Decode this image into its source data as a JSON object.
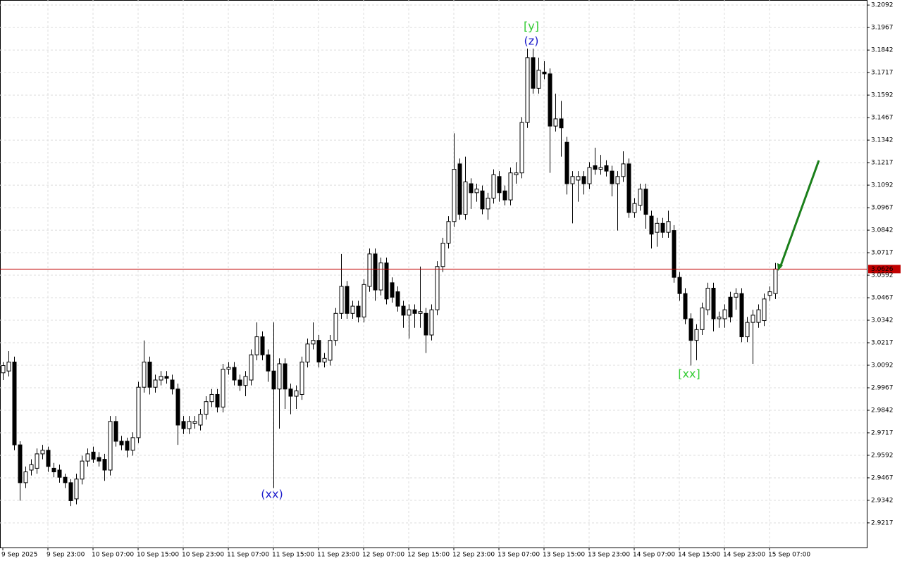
{
  "chart_data": {
    "type": "candlestick",
    "open": [
      3.005,
      3.006,
      3.011,
      2.965,
      2.944,
      2.951,
      2.952,
      2.96,
      2.962,
      2.952,
      2.951,
      2.947,
      2.944,
      2.935,
      2.946,
      2.956,
      2.961,
      2.958,
      2.957,
      2.951,
      2.978,
      2.967,
      2.967,
      2.962,
      2.969,
      2.997,
      3.011,
      2.997,
      3.001,
      3.003,
      3.001,
      2.996,
      2.978,
      2.974,
      2.977,
      2.976,
      2.982,
      2.989,
      2.993,
      2.986,
      3.007,
      3.008,
      3.001,
      2.998,
      3.001,
      3.015,
      3.025,
      3.015,
      3.006,
      2.996,
      3.01,
      2.996,
      2.992,
      2.993,
      3.011,
      3.021,
      3.023,
      3.011,
      3.012,
      3.023,
      3.038,
      3.053,
      3.038,
      3.042,
      3.036,
      3.053,
      3.071,
      3.051,
      3.066,
      3.055,
      3.05,
      3.042,
      3.037,
      3.04,
      3.038,
      3.038,
      3.026,
      3.04,
      3.064,
      3.077,
      3.089,
      3.121,
      3.093,
      3.11,
      3.105,
      3.106,
      3.096,
      3.102,
      3.114,
      3.106,
      3.101,
      3.115,
      3.116,
      3.144,
      3.18,
      3.163,
      3.172,
      3.171,
      3.142,
      3.146,
      3.133,
      3.11,
      3.112,
      3.114,
      3.11,
      3.12,
      3.118,
      3.12,
      3.117,
      3.11,
      3.114,
      3.121,
      3.094,
      3.098,
      3.107,
      3.092,
      3.083,
      3.088,
      3.083,
      3.084,
      3.058,
      3.049,
      3.035,
      3.023,
      3.029,
      3.04,
      3.052,
      3.035,
      3.035,
      3.047,
      3.047,
      3.049,
      3.025,
      3.033,
      3.033,
      3.034,
      3.048,
      3.049
    ],
    "high": [
      3.011,
      3.017,
      3.014,
      2.967,
      2.953,
      2.957,
      2.963,
      2.965,
      2.964,
      2.955,
      2.954,
      2.949,
      2.946,
      2.949,
      2.959,
      2.963,
      2.964,
      2.961,
      2.96,
      2.981,
      2.981,
      2.97,
      2.969,
      2.972,
      3.0,
      3.023,
      3.014,
      3.004,
      3.006,
      3.006,
      3.004,
      2.999,
      2.981,
      2.981,
      2.981,
      2.985,
      2.992,
      2.996,
      2.996,
      3.01,
      3.011,
      3.011,
      3.004,
      3.006,
      3.018,
      3.033,
      3.028,
      3.018,
      3.033,
      3.013,
      3.013,
      2.999,
      2.998,
      3.014,
      3.024,
      3.033,
      3.026,
      3.016,
      3.026,
      3.041,
      3.071,
      3.056,
      3.045,
      3.045,
      3.057,
      3.074,
      3.074,
      3.069,
      3.069,
      3.058,
      3.053,
      3.045,
      3.043,
      3.043,
      3.064,
      3.041,
      3.043,
      3.067,
      3.08,
      3.092,
      3.138,
      3.124,
      3.125,
      3.113,
      3.11,
      3.109,
      3.105,
      3.118,
      3.117,
      3.109,
      3.119,
      3.122,
      3.147,
      3.185,
      3.185,
      3.18,
      3.178,
      3.174,
      3.16,
      3.156,
      3.136,
      3.117,
      3.117,
      3.117,
      3.122,
      3.13,
      3.126,
      3.123,
      3.12,
      3.117,
      3.128,
      3.124,
      3.102,
      3.11,
      3.11,
      3.095,
      3.091,
      3.091,
      3.095,
      3.087,
      3.061,
      3.052,
      3.038,
      3.032,
      3.044,
      3.055,
      3.055,
      3.039,
      3.043,
      3.05,
      3.052,
      3.052,
      3.036,
      3.04,
      3.043,
      3.049,
      3.053,
      3.066
    ],
    "low": [
      3.001,
      3.003,
      2.962,
      2.934,
      2.941,
      2.948,
      2.949,
      2.957,
      2.95,
      2.947,
      2.944,
      2.941,
      2.931,
      2.932,
      2.943,
      2.953,
      2.955,
      2.953,
      2.945,
      2.948,
      2.964,
      2.962,
      2.958,
      2.959,
      2.966,
      2.994,
      2.993,
      2.994,
      2.998,
      2.999,
      2.993,
      2.965,
      2.971,
      2.971,
      2.974,
      2.973,
      2.979,
      2.986,
      2.983,
      2.983,
      3.004,
      2.998,
      2.995,
      2.992,
      2.998,
      3.012,
      3.012,
      3.0,
      2.941,
      2.974,
      2.985,
      2.982,
      2.985,
      2.99,
      3.008,
      3.018,
      3.008,
      3.008,
      3.009,
      3.02,
      3.035,
      3.035,
      3.035,
      3.033,
      3.033,
      3.05,
      3.045,
      3.048,
      3.043,
      3.044,
      3.039,
      3.03,
      3.024,
      3.03,
      3.03,
      3.016,
      3.023,
      3.037,
      3.061,
      3.074,
      3.086,
      3.09,
      3.09,
      3.096,
      3.1,
      3.093,
      3.09,
      3.099,
      3.1,
      3.098,
      3.098,
      3.11,
      3.113,
      3.141,
      3.16,
      3.16,
      3.168,
      3.116,
      3.139,
      3.125,
      3.104,
      3.088,
      3.1,
      3.104,
      3.107,
      3.115,
      3.115,
      3.114,
      3.103,
      3.084,
      3.111,
      3.091,
      3.091,
      3.095,
      3.085,
      3.074,
      3.075,
      3.08,
      3.08,
      3.055,
      3.045,
      3.032,
      3.009,
      3.012,
      3.026,
      3.037,
      3.028,
      3.03,
      3.03,
      3.033,
      3.04,
      3.022,
      3.022,
      3.01,
      3.03,
      3.031,
      3.045,
      3.046
    ],
    "close": [
      3.009,
      3.011,
      2.965,
      2.944,
      2.95,
      2.954,
      2.96,
      2.962,
      2.953,
      2.95,
      2.947,
      2.944,
      2.934,
      2.946,
      2.956,
      2.96,
      2.957,
      2.956,
      2.951,
      2.978,
      2.967,
      2.965,
      2.962,
      2.969,
      2.997,
      3.011,
      2.997,
      3.001,
      3.003,
      3.002,
      2.996,
      2.976,
      2.974,
      2.978,
      2.978,
      2.982,
      2.989,
      2.993,
      2.986,
      3.007,
      3.008,
      3.001,
      2.998,
      3.003,
      3.015,
      3.025,
      3.015,
      3.006,
      2.996,
      3.01,
      2.996,
      2.992,
      2.995,
      3.011,
      3.021,
      3.023,
      3.011,
      3.013,
      3.023,
      3.038,
      3.053,
      3.038,
      3.042,
      3.036,
      3.054,
      3.071,
      3.051,
      3.066,
      3.046,
      3.047,
      3.042,
      3.037,
      3.04,
      3.038,
      3.039,
      3.026,
      3.04,
      3.064,
      3.077,
      3.089,
      3.118,
      3.093,
      3.111,
      3.105,
      3.107,
      3.096,
      3.102,
      3.115,
      3.105,
      3.101,
      3.116,
      3.116,
      3.144,
      3.18,
      3.163,
      3.173,
      3.171,
      3.142,
      3.146,
      3.141,
      3.11,
      3.114,
      3.114,
      3.11,
      3.119,
      3.118,
      3.119,
      3.117,
      3.11,
      3.114,
      3.121,
      3.094,
      3.099,
      3.107,
      3.093,
      3.082,
      3.088,
      3.083,
      3.089,
      3.058,
      3.049,
      3.035,
      3.023,
      3.029,
      3.041,
      3.052,
      3.035,
      3.036,
      3.04,
      3.036,
      3.049,
      3.025,
      3.033,
      3.037,
      3.04,
      3.046,
      3.05,
      3.0626
    ],
    "current_price": 3.0626,
    "xlim": [
      -0.5,
      153.25
    ],
    "xticks": [
      {
        "value": 0,
        "label": "9 Sep 2025"
      },
      {
        "value": 8,
        "label": "9 Sep 23:00"
      },
      {
        "value": 16,
        "label": "10 Sep 07:00"
      },
      {
        "value": 24,
        "label": "10 Sep 15:00"
      },
      {
        "value": 32,
        "label": "10 Sep 23:00"
      },
      {
        "value": 40,
        "label": "11 Sep 07:00"
      },
      {
        "value": 48,
        "label": "11 Sep 15:00"
      },
      {
        "value": 56,
        "label": "11 Sep 23:00"
      },
      {
        "value": 64,
        "label": "12 Sep 07:00"
      },
      {
        "value": 72,
        "label": "12 Sep 15:00"
      },
      {
        "value": 80,
        "label": "12 Sep 23:00"
      },
      {
        "value": 88,
        "label": "13 Sep 07:00"
      },
      {
        "value": 96,
        "label": "13 Sep 15:00"
      },
      {
        "value": 104,
        "label": "13 Sep 23:00"
      },
      {
        "value": 112,
        "label": "14 Sep 07:00"
      },
      {
        "value": 120,
        "label": "14 Sep 15:00"
      },
      {
        "value": 128,
        "label": "14 Sep 23:00"
      },
      {
        "value": 136,
        "label": "15 Sep 07:00"
      }
    ],
    "ylim": [
      2.908,
      3.212
    ],
    "yticks": [
      3.2092,
      3.1967,
      3.1842,
      3.1717,
      3.1592,
      3.1467,
      3.1342,
      3.1217,
      3.1092,
      3.0967,
      3.0842,
      3.0717,
      3.0592,
      3.0467,
      3.0342,
      3.0217,
      3.0092,
      2.9967,
      2.9842,
      2.9717,
      2.9592,
      2.9467,
      2.9342,
      2.9217
    ],
    "grid": true,
    "up_color": "#ffffff",
    "down_color": "#000000",
    "price_line_color": "#c00000",
    "annotations": [
      {
        "text": "[y]",
        "color": "#33cc33"
      },
      {
        "text": "(z)",
        "color": "#1c1ccc"
      },
      {
        "text": "(xx)",
        "color": "#1c1ccc"
      },
      {
        "text": "[xx]",
        "color": "#33cc33"
      }
    ]
  }
}
